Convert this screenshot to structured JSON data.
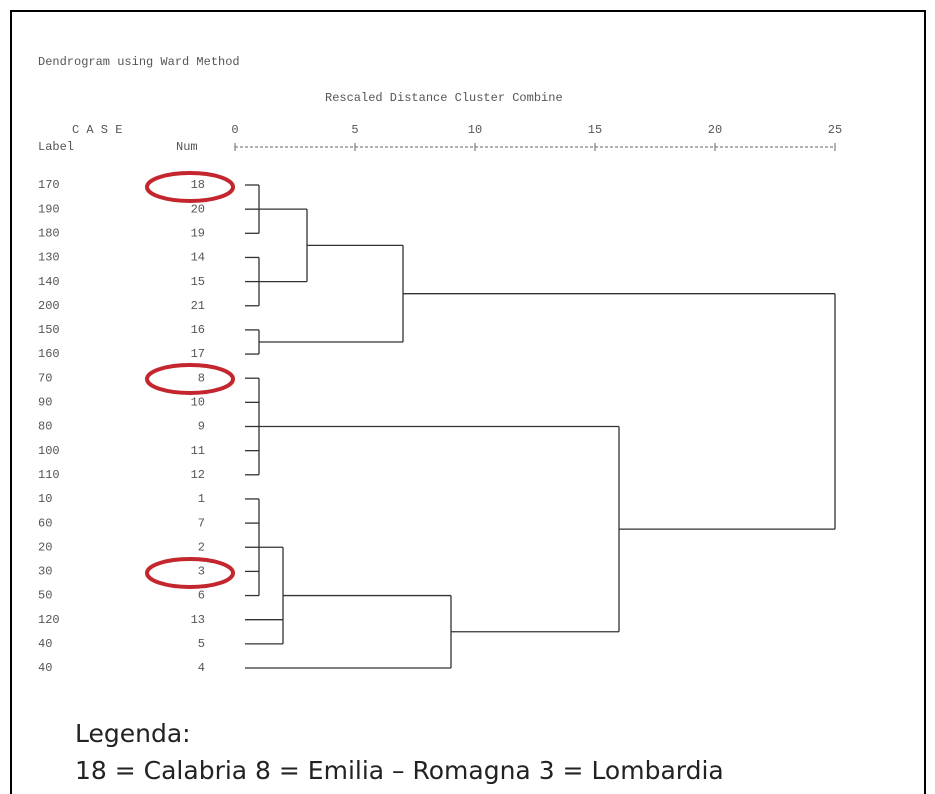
{
  "header": {
    "title": "Dendrogram using Ward Method",
    "axis_title": "Rescaled Distance Cluster Combine",
    "case_heading": "C A S E",
    "label_heading": "Label",
    "num_heading": "Num"
  },
  "axis": {
    "xlim": [
      0,
      25
    ],
    "xticks": [
      0,
      5,
      10,
      15,
      20,
      25
    ]
  },
  "tree": {
    "height": 25,
    "children": [
      {
        "height": 7,
        "children": [
          {
            "height": 3,
            "children": [
              {
                "height": 1,
                "children": [
                  {
                    "label": 170,
                    "num": 18
                  },
                  {
                    "label": 190,
                    "num": 20
                  },
                  {
                    "label": 180,
                    "num": 19
                  }
                ]
              },
              {
                "height": 1,
                "children": [
                  {
                    "label": 130,
                    "num": 14
                  },
                  {
                    "label": 140,
                    "num": 15
                  },
                  {
                    "label": 200,
                    "num": 21
                  }
                ]
              }
            ]
          },
          {
            "height": 1,
            "children": [
              {
                "label": 150,
                "num": 16
              },
              {
                "label": 160,
                "num": 17
              }
            ]
          }
        ]
      },
      {
        "height": 16,
        "children": [
          {
            "height": 1,
            "children": [
              {
                "label": 70,
                "num": 8
              },
              {
                "label": 90,
                "num": 10
              },
              {
                "label": 80,
                "num": 9
              },
              {
                "label": 100,
                "num": 11
              },
              {
                "label": 110,
                "num": 12
              }
            ]
          },
          {
            "height": 9,
            "children": [
              {
                "height": 2,
                "children": [
                  {
                    "height": 1,
                    "children": [
                      {
                        "label": 10,
                        "num": 1
                      },
                      {
                        "label": 60,
                        "num": 7
                      },
                      {
                        "label": 20,
                        "num": 2
                      },
                      {
                        "label": 30,
                        "num": 3
                      },
                      {
                        "label": 50,
                        "num": 6
                      }
                    ]
                  },
                  {
                    "label": 120,
                    "num": 13
                  },
                  {
                    "label": 40,
                    "num": 5
                  }
                ]
              },
              {
                "label": 40,
                "num": 4
              }
            ]
          }
        ]
      }
    ]
  },
  "legend": {
    "title": "Legenda:",
    "text": "18 = Calabria  8 = Emilia – Romagna 3 = Lombardia"
  }
}
